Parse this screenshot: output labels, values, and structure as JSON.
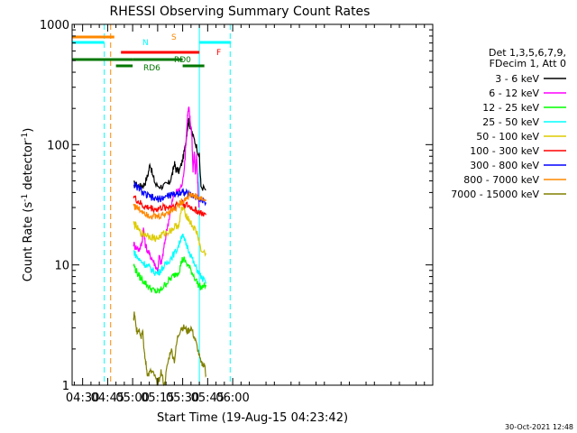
{
  "chart_data": {
    "type": "line",
    "title": "RHESSI Observing Summary Count Rates",
    "xlabel": "Start Time (19-Aug-15 04:23:42)",
    "ylabel_parts": [
      "Count Rate (s",
      "-1",
      " detector",
      "-1",
      ")"
    ],
    "y_scale": "log",
    "ylim": [
      1,
      1000
    ],
    "y_ticks": [
      {
        "v": 1,
        "label": "1"
      },
      {
        "v": 10,
        "label": "10"
      },
      {
        "v": 100,
        "label": "100"
      },
      {
        "v": 1000,
        "label": "1000"
      }
    ],
    "xlim_min": [
      263.7,
      480.0
    ],
    "x_ticks": [
      {
        "t": 270,
        "label": "04:30"
      },
      {
        "t": 285,
        "label": "04:45"
      },
      {
        "t": 300,
        "label": "05:00"
      },
      {
        "t": 315,
        "label": "05:15"
      },
      {
        "t": 330,
        "label": "05:30"
      },
      {
        "t": 345,
        "label": "05:45"
      },
      {
        "t": 360,
        "label": "06:00"
      }
    ],
    "legend_header": [
      "Det 1,3,5,6,7,9,",
      "FDecim 1, Att 0"
    ],
    "legend_position": "right",
    "series": [
      {
        "name": "3 - 6 keV",
        "color": "#000000",
        "points": [
          [
            300.6,
            47
          ],
          [
            303,
            46
          ],
          [
            305,
            45
          ],
          [
            307,
            47
          ],
          [
            309,
            55
          ],
          [
            310.5,
            70
          ],
          [
            312,
            55
          ],
          [
            314,
            46
          ],
          [
            317,
            45
          ],
          [
            320,
            46
          ],
          [
            322,
            48
          ],
          [
            324,
            58
          ],
          [
            325,
            70
          ],
          [
            326,
            62
          ],
          [
            328,
            60
          ],
          [
            330,
            75
          ],
          [
            331.5,
            95
          ],
          [
            332.5,
            125
          ],
          [
            333.5,
            160
          ],
          [
            334.5,
            140
          ],
          [
            336,
            120
          ],
          [
            338,
            100
          ],
          [
            340,
            80
          ],
          [
            341,
            45
          ],
          [
            344,
            42
          ]
        ]
      },
      {
        "name": "6 - 12 keV",
        "color": "#ff00ff",
        "points": [
          [
            300.6,
            15
          ],
          [
            302,
            14
          ],
          [
            304,
            13.5
          ],
          [
            305.5,
            15
          ],
          [
            306.5,
            20
          ],
          [
            307.5,
            15
          ],
          [
            309,
            13
          ],
          [
            310.5,
            12
          ],
          [
            312,
            11
          ],
          [
            313.5,
            10
          ],
          [
            315,
            9
          ],
          [
            316,
            12
          ],
          [
            317,
            10
          ],
          [
            318.5,
            13
          ],
          [
            320,
            18
          ],
          [
            322,
            25
          ],
          [
            324,
            35
          ],
          [
            326,
            40
          ],
          [
            328,
            42
          ],
          [
            330,
            48
          ],
          [
            331.5,
            80
          ],
          [
            332.5,
            140
          ],
          [
            333,
            180
          ],
          [
            333.7,
            200
          ],
          [
            334.5,
            160
          ],
          [
            335.5,
            120
          ],
          [
            336.2,
            60
          ],
          [
            337,
            90
          ],
          [
            337.6,
            55
          ],
          [
            338.4,
            80
          ],
          [
            339,
            50
          ],
          [
            339.8,
            30
          ]
        ]
      },
      {
        "name": "12 - 25 keV",
        "color": "#00ff00",
        "points": [
          [
            300.6,
            10
          ],
          [
            302,
            9
          ],
          [
            304,
            8
          ],
          [
            306,
            7.5
          ],
          [
            308,
            7
          ],
          [
            310,
            6.5
          ],
          [
            312,
            6.2
          ],
          [
            314,
            6
          ],
          [
            316,
            6
          ],
          [
            318,
            6.5
          ],
          [
            320,
            7
          ],
          [
            322,
            7.5
          ],
          [
            324,
            8
          ],
          [
            326,
            8.5
          ],
          [
            328,
            9
          ],
          [
            329.5,
            11
          ],
          [
            331,
            11
          ],
          [
            333,
            10
          ],
          [
            335,
            9
          ],
          [
            337,
            8
          ],
          [
            339,
            7
          ],
          [
            341,
            6.5
          ],
          [
            344,
            6.8
          ]
        ]
      },
      {
        "name": "25 - 50 keV",
        "color": "#00ffff",
        "points": [
          [
            300.6,
            13
          ],
          [
            302,
            12
          ],
          [
            304,
            11
          ],
          [
            306,
            10.5
          ],
          [
            308,
            10
          ],
          [
            310,
            9.5
          ],
          [
            312,
            9
          ],
          [
            314,
            8.5
          ],
          [
            316,
            8.8
          ],
          [
            318,
            9.5
          ],
          [
            320,
            10
          ],
          [
            322,
            11
          ],
          [
            324,
            12
          ],
          [
            326,
            13
          ],
          [
            328,
            15
          ],
          [
            329.5,
            18
          ],
          [
            331,
            16
          ],
          [
            333,
            14
          ],
          [
            335,
            12
          ],
          [
            337,
            10
          ],
          [
            339,
            9
          ],
          [
            341,
            8
          ],
          [
            344,
            7
          ]
        ]
      },
      {
        "name": "50 - 100 keV",
        "color": "#ddcc00",
        "points": [
          [
            300.6,
            22
          ],
          [
            302,
            21
          ],
          [
            304,
            19
          ],
          [
            306,
            18
          ],
          [
            308,
            18
          ],
          [
            310,
            17.5
          ],
          [
            312,
            17
          ],
          [
            314,
            16.5
          ],
          [
            316,
            17
          ],
          [
            318,
            18
          ],
          [
            320,
            18.5
          ],
          [
            322,
            19
          ],
          [
            324,
            20
          ],
          [
            326,
            21
          ],
          [
            328,
            22
          ],
          [
            329.5,
            30
          ],
          [
            331,
            28
          ],
          [
            333,
            25
          ],
          [
            335,
            22
          ],
          [
            337,
            20
          ],
          [
            339,
            18
          ],
          [
            341,
            13
          ],
          [
            344,
            12.5
          ]
        ]
      },
      {
        "name": "100 - 300 keV",
        "color": "#ff0000",
        "points": [
          [
            300.6,
            38
          ],
          [
            302,
            35
          ],
          [
            304,
            33
          ],
          [
            306,
            31
          ],
          [
            308,
            30
          ],
          [
            310,
            30
          ],
          [
            312,
            29.5
          ],
          [
            314,
            29
          ],
          [
            316,
            29.5
          ],
          [
            318,
            30
          ],
          [
            320,
            30
          ],
          [
            322,
            30.5
          ],
          [
            324,
            31
          ],
          [
            326,
            31.5
          ],
          [
            328,
            32
          ],
          [
            329.5,
            33
          ],
          [
            331,
            32
          ],
          [
            333,
            31
          ],
          [
            335,
            30
          ],
          [
            337,
            29
          ],
          [
            339,
            28
          ],
          [
            341,
            27
          ],
          [
            344,
            26
          ]
        ]
      },
      {
        "name": "300 - 800 keV",
        "color": "#0000ff",
        "points": [
          [
            300.6,
            47
          ],
          [
            302,
            45
          ],
          [
            304,
            43
          ],
          [
            306,
            40
          ],
          [
            308,
            38
          ],
          [
            310,
            37
          ],
          [
            312,
            36
          ],
          [
            314,
            35
          ],
          [
            316,
            35.5
          ],
          [
            318,
            36
          ],
          [
            320,
            37
          ],
          [
            322,
            38
          ],
          [
            324,
            38
          ],
          [
            326,
            39
          ],
          [
            328,
            40
          ],
          [
            329.5,
            41
          ],
          [
            331,
            40
          ],
          [
            333,
            39
          ],
          [
            335,
            38
          ],
          [
            337,
            37
          ],
          [
            339,
            36
          ],
          [
            341,
            35
          ],
          [
            344,
            33
          ]
        ]
      },
      {
        "name": "800 - 7000 keV",
        "color": "#ff8800",
        "points": [
          [
            300.6,
            32
          ],
          [
            302,
            30
          ],
          [
            304,
            29
          ],
          [
            306,
            28
          ],
          [
            308,
            27
          ],
          [
            310,
            26
          ],
          [
            312,
            25.5
          ],
          [
            314,
            25
          ],
          [
            316,
            25.5
          ],
          [
            318,
            26
          ],
          [
            320,
            27
          ],
          [
            322,
            28
          ],
          [
            324,
            29
          ],
          [
            326,
            30
          ],
          [
            328,
            32
          ],
          [
            330,
            34
          ],
          [
            332,
            36
          ],
          [
            334,
            38
          ],
          [
            336,
            38
          ],
          [
            338,
            37
          ],
          [
            340,
            36
          ],
          [
            342,
            35
          ],
          [
            344,
            34
          ]
        ]
      },
      {
        "name": "7000 - 15000 keV",
        "color": "#808000",
        "points": [
          [
            300.6,
            3.5
          ],
          [
            301,
            4
          ],
          [
            302,
            3
          ],
          [
            303,
            2.8
          ],
          [
            304,
            3
          ],
          [
            305,
            2.5
          ],
          [
            306,
            3
          ],
          [
            307,
            1.8
          ],
          [
            308,
            1.5
          ],
          [
            309,
            1.2
          ],
          [
            311,
            1.3
          ],
          [
            313,
            1.2
          ],
          [
            315,
            1
          ],
          [
            317,
            1.3
          ],
          [
            319,
            1
          ],
          [
            321,
            1.5
          ],
          [
            323,
            2
          ],
          [
            325,
            1.6
          ],
          [
            327,
            2.5
          ],
          [
            329,
            3
          ],
          [
            331,
            3
          ],
          [
            333,
            2.8
          ],
          [
            335,
            3
          ],
          [
            337,
            2.5
          ],
          [
            339,
            2
          ],
          [
            341,
            1.5
          ],
          [
            343,
            1.5
          ],
          [
            344,
            1.2
          ]
        ]
      }
    ],
    "flags": [
      {
        "label": "S",
        "color": "#ff8800",
        "y": 41,
        "segments": [
          [
            263.7,
            289
          ]
        ]
      },
      {
        "label": "N",
        "color": "#00ffff",
        "y": 47,
        "segments": [
          [
            263.7,
            283
          ],
          [
            340,
            359
          ]
        ]
      },
      {
        "label": "F",
        "color": "#ff0000",
        "y": 58,
        "segments": [
          [
            293,
            340
          ]
        ]
      },
      {
        "label": "RD0",
        "color": "#007700",
        "y": 66,
        "segments": [
          [
            263.7,
            300
          ],
          [
            300,
            330
          ]
        ]
      },
      {
        "label": "RD6",
        "color": "#007700",
        "y": 73,
        "segments": [
          [
            290,
            300
          ],
          [
            330,
            343
          ]
        ]
      }
    ],
    "vlines": [
      {
        "t": 263.7,
        "color": "#00ffff",
        "style": "solid"
      },
      {
        "t": 283.0,
        "color": "#00ffff",
        "style": "dashed"
      },
      {
        "t": 286.8,
        "color": "#ff8800",
        "style": "dashed"
      },
      {
        "t": 340.0,
        "color": "#00ffff",
        "style": "solid"
      },
      {
        "t": 358.5,
        "color": "#00ffff",
        "style": "dashed"
      }
    ]
  },
  "footer": {
    "date": "30-Oct-2021 12:48"
  }
}
